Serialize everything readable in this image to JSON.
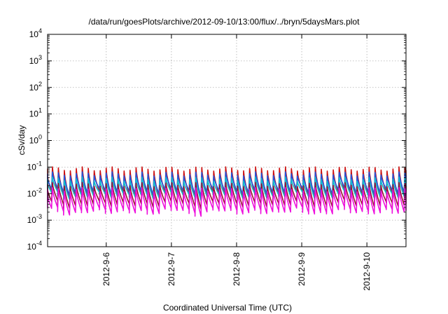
{
  "chart_data": {
    "type": "line",
    "title": "/data/run/goesPlots/archive/2012-09-10/13:00/flux/../bryn/5daysMars.plot",
    "xlabel": "Coordinated Universal Time (UTC)",
    "ylabel": "cSv/day",
    "yscale": "log",
    "ylim_exp": [
      -4,
      4
    ],
    "y_ticks": [
      {
        "base": "10",
        "exp": "-4",
        "value": 0.0001
      },
      {
        "base": "10",
        "exp": "-3",
        "value": 0.001
      },
      {
        "base": "10",
        "exp": "-2",
        "value": 0.01
      },
      {
        "base": "10",
        "exp": "-1",
        "value": 0.1
      },
      {
        "base": "10",
        "exp": "0",
        "value": 1
      },
      {
        "base": "10",
        "exp": "1",
        "value": 10
      },
      {
        "base": "10",
        "exp": "2",
        "value": 100
      },
      {
        "base": "10",
        "exp": "3",
        "value": 1000
      },
      {
        "base": "10",
        "exp": "4",
        "value": 10000
      }
    ],
    "xlim_days": [
      5.1,
      10.6
    ],
    "x_ticks": [
      {
        "label": "2012-9-6",
        "day": 6
      },
      {
        "label": "2012-9-7",
        "day": 7
      },
      {
        "label": "2012-9-8",
        "day": 8
      },
      {
        "label": "2012-9-9",
        "day": 9
      },
      {
        "label": "2012-9-10",
        "day": 10
      }
    ],
    "grid": true,
    "sawtooth_period_days": 0.0917,
    "series": [
      {
        "name": "red",
        "color": "#cc1111",
        "peak": 0.085,
        "trough": 0.009
      },
      {
        "name": "blue",
        "color": "#2255dd",
        "peak": 0.055,
        "trough": 0.012
      },
      {
        "name": "cyan",
        "color": "#11bbcc",
        "peak": 0.035,
        "trough": 0.0085
      },
      {
        "name": "dark-red",
        "color": "#991133",
        "peak": 0.022,
        "trough": 0.004
      },
      {
        "name": "magenta",
        "color": "#ee11dd",
        "peak": 0.014,
        "trough": 0.0022
      }
    ]
  }
}
